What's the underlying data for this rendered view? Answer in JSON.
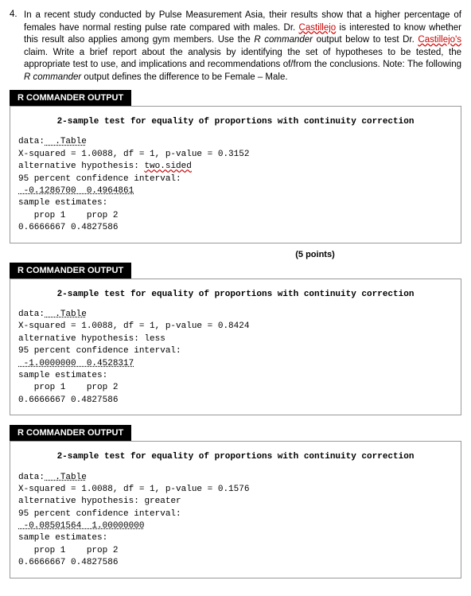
{
  "question": {
    "number": "4.",
    "text_parts": {
      "p1": "In a recent study conducted by Pulse Measurement Asia, their results show that a higher percentage of females have normal resting pulse rate compared with males. Dr. ",
      "name1": "Castillejo",
      "p2": " is interested to know whether this result also applies among gym members. Use the ",
      "rc": "R commander",
      "p3": " output below to test Dr. ",
      "name2": "Castillejo's",
      "p4": " claim. Write a brief report about the analysis by identifying the set of hypotheses to be tested, the appropriate test to use, and implications and recommendations of/from the conclusions. Note: The following ",
      "rc2": "R commander",
      "p5": " output defines the difference to be Female – Male."
    }
  },
  "points": "(5 points)",
  "header_label": "R COMMANDER OUTPUT",
  "outputs": [
    {
      "title": "2-sample test for equality of proportions with continuity correction",
      "data_label": "data:",
      "table": ".Table",
      "xsq": "X-squared = 1.0088, df = 1, p-value = 0.3152",
      "alt_prefix": "alternative hypothesis: ",
      "alt_hyp": "two.sided",
      "alt_wavy": true,
      "ci_label": "95 percent confidence interval:",
      "ci": " -0.1286700  0.4964861",
      "est_label": "sample estimates:",
      "props": "   prop 1    prop 2",
      "vals": "0.6666667 0.4827586"
    },
    {
      "title": "2-sample test for equality of proportions with continuity correction",
      "data_label": "data:",
      "table": ".Table",
      "xsq": "X-squared = 1.0088, df = 1, p-value = 0.8424",
      "alt_prefix": "alternative hypothesis: ",
      "alt_hyp": "less",
      "alt_wavy": false,
      "ci_label": "95 percent confidence interval:",
      "ci": " -1.0000000  0.4528317",
      "est_label": "sample estimates:",
      "props": "   prop 1    prop 2",
      "vals": "0.6666667 0.4827586"
    },
    {
      "title": "2-sample test for equality of proportions with continuity correction",
      "data_label": "data:",
      "table": ".Table",
      "xsq": "X-squared = 1.0088, df = 1, p-value = 0.1576",
      "alt_prefix": "alternative hypothesis: ",
      "alt_hyp": "greater",
      "alt_wavy": false,
      "ci_label": "95 percent confidence interval:",
      "ci": " -0.08501564  1.00000000",
      "est_label": "sample estimates:",
      "props": "   prop 1    prop 2",
      "vals": "0.6666667 0.4827586"
    }
  ]
}
